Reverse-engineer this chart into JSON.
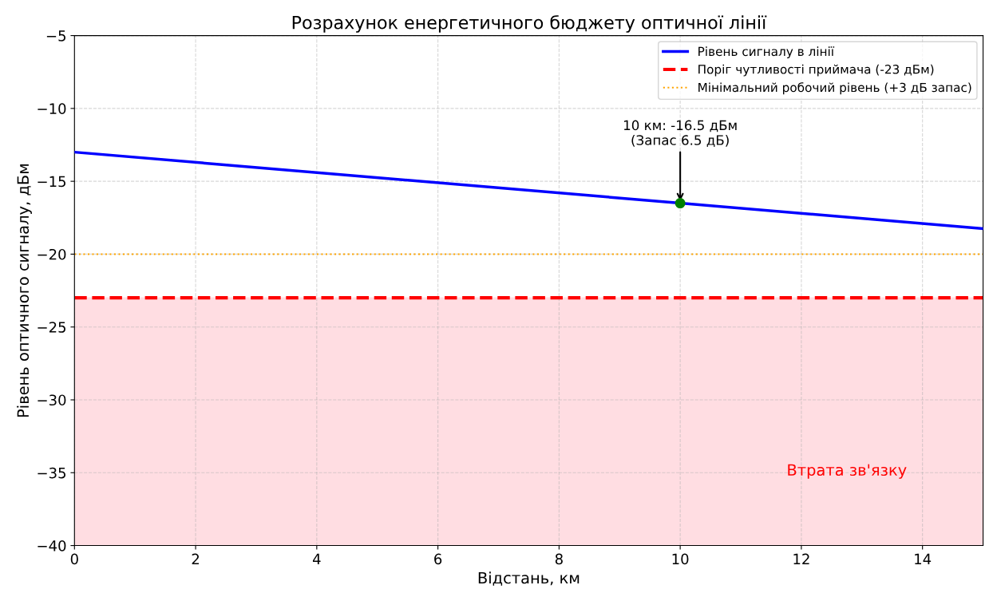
{
  "chart_data": {
    "type": "line",
    "title": "Розрахунок енергетичного бюджету оптичної лінії",
    "xlabel": "Відстань, км",
    "ylabel": "Рівень оптичного сигналу, дБм",
    "series": [
      {
        "name": "Рівень сигналу в лінії",
        "color": "#0000ff",
        "x": [
          0,
          10,
          15
        ],
        "values": [
          -13,
          -16.5,
          -18.25
        ]
      },
      {
        "color": "#008000",
        "type": "scatter",
        "x": [
          10
        ],
        "values": [
          -16.5
        ]
      }
    ],
    "ref_lines": [
      {
        "axis": "y",
        "value": -23,
        "label": "Поріг чутливості приймача (-23 дБм)",
        "color": "#ff0000",
        "line_style": "dashed"
      },
      {
        "axis": "y",
        "value": -20,
        "label": "Мінімальний робочий рівень (+3 дБ запас)",
        "color": "#ffa500",
        "line_style": "dotted"
      }
    ],
    "bands": [
      {
        "axis": "y",
        "from": -40,
        "to": -23,
        "label": "Втрата зв'язку",
        "color": "#ffdde2"
      }
    ],
    "annotations": [
      {
        "text": "10 км: -16.5 дБм\n(Запас 6.5 дБ)",
        "x": 10,
        "y": -16.5
      }
    ],
    "xlim": [
      0,
      15
    ],
    "xticks": [
      0,
      2,
      4,
      6,
      8,
      10,
      12,
      14
    ],
    "ylim": [
      -40,
      -5
    ],
    "yticks": [
      {
        "value": -40,
        "label": "−40"
      },
      {
        "value": -35,
        "label": "−35"
      },
      {
        "value": -30,
        "label": "−30"
      },
      {
        "value": -25,
        "label": "−25"
      },
      {
        "value": -20,
        "label": "−20"
      },
      {
        "value": -15,
        "label": "−15"
      },
      {
        "value": -10,
        "label": "−10"
      },
      {
        "value": -5,
        "label": "−5"
      }
    ],
    "grid": true,
    "legend": "top right"
  }
}
